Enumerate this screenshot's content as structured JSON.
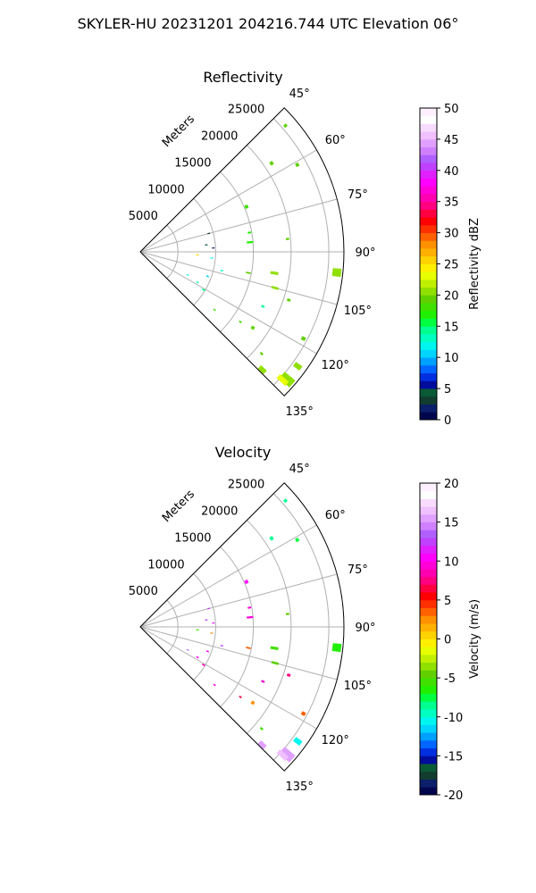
{
  "figure": {
    "title": "SKYLER-HU  20231201  204216.744 UTC Elevation 06°"
  },
  "chart_data": [
    {
      "type": "heatmap",
      "projection": "polar-sector",
      "title": "Reflectivity",
      "range_label": "Meters",
      "range_ticks": [
        5000,
        10000,
        15000,
        20000,
        25000
      ],
      "range_max": 27000,
      "azimuth_ticks": [
        "45°",
        "60°",
        "75°",
        "90°",
        "105°",
        "120°",
        "135°"
      ],
      "azimuth_range": [
        45,
        135
      ],
      "grid": true,
      "colorbar": {
        "label": "Reflectivity dBZ",
        "ticks": [
          0,
          5,
          10,
          15,
          20,
          25,
          30,
          35,
          40,
          45,
          50
        ],
        "min": 0,
        "max": 50,
        "colors": [
          "#00064e",
          "#0b1f6a",
          "#123c2e",
          "#0a5a36",
          "#000c9c",
          "#002fe0",
          "#0066ff",
          "#00a0ff",
          "#00d4ff",
          "#00f6ee",
          "#00ffc0",
          "#00ff90",
          "#00ff40",
          "#20f000",
          "#40e000",
          "#60d000",
          "#90e000",
          "#c0f000",
          "#e8ff00",
          "#fff000",
          "#ffd200",
          "#ffb000",
          "#ff9000",
          "#ff6000",
          "#ff3000",
          "#ff0000",
          "#ff0040",
          "#ff0080",
          "#ff00b0",
          "#ff00d8",
          "#ff00ff",
          "#e020ff",
          "#c040ff",
          "#b060ff",
          "#d080ff",
          "#e0a0ff",
          "#f0c0ff",
          "#f8dcff",
          "#ffffff",
          "#fff0ff"
        ]
      },
      "echoes": [
        {
          "az": 49,
          "r": 25500,
          "span_az": 0.8,
          "span_r": 400,
          "value": 19
        },
        {
          "az": 56,
          "r": 21000,
          "span_az": 1.2,
          "span_r": 400,
          "value": 19
        },
        {
          "az": 61,
          "r": 23800,
          "span_az": 1,
          "span_r": 400,
          "value": 19
        },
        {
          "az": 67,
          "r": 15300,
          "span_az": 1.5,
          "span_r": 400,
          "value": 18
        },
        {
          "az": 75,
          "r": 9400,
          "span_az": 0.6,
          "span_r": 300,
          "value": 3
        },
        {
          "az": 80,
          "r": 14700,
          "span_az": 0.7,
          "span_r": 400,
          "value": 17
        },
        {
          "az": 84,
          "r": 8800,
          "span_az": 0.6,
          "span_r": 300,
          "value": 4
        },
        {
          "az": 85,
          "r": 14600,
          "span_az": 0.8,
          "span_r": 800,
          "value": 17
        },
        {
          "az": 85,
          "r": 19600,
          "span_az": 0.6,
          "span_r": 400,
          "value": 19
        },
        {
          "az": 87,
          "r": 9700,
          "span_az": 0.5,
          "span_r": 300,
          "value": 2
        },
        {
          "az": 93,
          "r": 7600,
          "span_az": 0.7,
          "span_r": 300,
          "value": 25
        },
        {
          "az": 95,
          "r": 9500,
          "span_az": 0.6,
          "span_r": 300,
          "value": 12
        },
        {
          "az": 96,
          "r": 26200,
          "span_az": 2.2,
          "span_r": 1100,
          "value": 20
        },
        {
          "az": 99,
          "r": 18000,
          "span_az": 1,
          "span_r": 1000,
          "value": 20
        },
        {
          "az": 101,
          "r": 14600,
          "span_az": 0.6,
          "span_r": 600,
          "value": 19
        },
        {
          "az": 103,
          "r": 11100,
          "span_az": 0.6,
          "span_r": 300,
          "value": 13
        },
        {
          "az": 105,
          "r": 18500,
          "span_az": 0.8,
          "span_r": 900,
          "value": 21
        },
        {
          "az": 108,
          "r": 20700,
          "span_az": 0.8,
          "span_r": 400,
          "value": 19
        },
        {
          "az": 110,
          "r": 9500,
          "span_az": 0.8,
          "span_r": 300,
          "value": 11
        },
        {
          "az": 114,
          "r": 17800,
          "span_az": 0.7,
          "span_r": 400,
          "value": 14
        },
        {
          "az": 116,
          "r": 7000,
          "span_az": 0.6,
          "span_r": 300,
          "value": 12
        },
        {
          "az": 118,
          "r": 8600,
          "span_az": 0.8,
          "span_r": 300,
          "value": 13
        },
        {
          "az": 118,
          "r": 24500,
          "span_az": 1,
          "span_r": 500,
          "value": 19
        },
        {
          "az": 121,
          "r": 9800,
          "span_az": 0.8,
          "span_r": 400,
          "value": 14
        },
        {
          "az": 124,
          "r": 18000,
          "span_az": 1.2,
          "span_r": 400,
          "value": 19
        },
        {
          "az": 125,
          "r": 16200,
          "span_az": 0.6,
          "span_r": 300,
          "value": 18
        },
        {
          "az": 126,
          "r": 25800,
          "span_az": 1.4,
          "span_r": 1000,
          "value": 20
        },
        {
          "az": 128,
          "r": 12500,
          "span_az": 0.6,
          "span_r": 300,
          "value": 18
        },
        {
          "az": 130,
          "r": 21000,
          "span_az": 0.6,
          "span_r": 400,
          "value": 19
        },
        {
          "az": 131,
          "r": 25800,
          "span_az": 2.5,
          "span_r": 1800,
          "value": 21
        },
        {
          "az": 132,
          "r": 25400,
          "span_az": 1.5,
          "span_r": 1500,
          "value": 23
        },
        {
          "az": 134,
          "r": 22500,
          "span_az": 1.5,
          "span_r": 1000,
          "value": 21
        }
      ]
    },
    {
      "type": "heatmap",
      "projection": "polar-sector",
      "title": "Velocity",
      "range_label": "Meters",
      "range_ticks": [
        5000,
        10000,
        15000,
        20000,
        25000
      ],
      "range_max": 27000,
      "azimuth_ticks": [
        "45°",
        "60°",
        "75°",
        "90°",
        "105°",
        "120°",
        "135°"
      ],
      "azimuth_range": [
        45,
        135
      ],
      "grid": true,
      "colorbar": {
        "label": "Velocity (m/s)",
        "ticks": [
          -20,
          -15,
          -10,
          -5,
          0,
          5,
          10,
          15,
          20
        ],
        "min": -20,
        "max": 20,
        "colors": [
          "#00064e",
          "#0b1f6a",
          "#123c2e",
          "#0a5a36",
          "#000c9c",
          "#002fe0",
          "#0066ff",
          "#00a0ff",
          "#00d4ff",
          "#00f6ee",
          "#00ffc0",
          "#00ff90",
          "#00ff40",
          "#20f000",
          "#40e000",
          "#60d000",
          "#90e000",
          "#c0f000",
          "#e8ff00",
          "#fff000",
          "#ffd200",
          "#ffb000",
          "#ff9000",
          "#ff6000",
          "#ff3000",
          "#ff0000",
          "#ff0040",
          "#ff0080",
          "#ff00b0",
          "#ff00d8",
          "#ff00ff",
          "#e020ff",
          "#c040ff",
          "#b060ff",
          "#d080ff",
          "#e0a0ff",
          "#f0c0ff",
          "#f8dcff",
          "#ffffff",
          "#fff0ff"
        ]
      },
      "echoes": [
        {
          "az": 49,
          "r": 25500,
          "span_az": 0.8,
          "span_r": 400,
          "value": -9
        },
        {
          "az": 56,
          "r": 21000,
          "span_az": 1.2,
          "span_r": 400,
          "value": -9
        },
        {
          "az": 61,
          "r": 23800,
          "span_az": 1,
          "span_r": 400,
          "value": -8
        },
        {
          "az": 67,
          "r": 15300,
          "span_az": 1.5,
          "span_r": 400,
          "value": 10
        },
        {
          "az": 75,
          "r": 9400,
          "span_az": 0.6,
          "span_r": 300,
          "value": 12
        },
        {
          "az": 80,
          "r": 14700,
          "span_az": 0.7,
          "span_r": 400,
          "value": 9
        },
        {
          "az": 84,
          "r": 8800,
          "span_az": 0.6,
          "span_r": 300,
          "value": 12
        },
        {
          "az": 85,
          "r": 14600,
          "span_az": 0.8,
          "span_r": 800,
          "value": 9
        },
        {
          "az": 85,
          "r": 19600,
          "span_az": 0.6,
          "span_r": 400,
          "value": -5
        },
        {
          "az": 87,
          "r": 9700,
          "span_az": 0.5,
          "span_r": 300,
          "value": 11
        },
        {
          "az": 93,
          "r": 7600,
          "span_az": 0.7,
          "span_r": 300,
          "value": -6
        },
        {
          "az": 95,
          "r": 9500,
          "span_az": 0.6,
          "span_r": 300,
          "value": 2
        },
        {
          "az": 96,
          "r": 26200,
          "span_az": 2.2,
          "span_r": 1100,
          "value": -7
        },
        {
          "az": 99,
          "r": 18000,
          "span_az": 1,
          "span_r": 1000,
          "value": -6
        },
        {
          "az": 101,
          "r": 14600,
          "span_az": 0.6,
          "span_r": 600,
          "value": 3
        },
        {
          "az": 103,
          "r": 11100,
          "span_az": 0.6,
          "span_r": 300,
          "value": 12
        },
        {
          "az": 105,
          "r": 18500,
          "span_az": 0.8,
          "span_r": 900,
          "value": -5
        },
        {
          "az": 108,
          "r": 20700,
          "span_az": 0.8,
          "span_r": 400,
          "value": 7
        },
        {
          "az": 110,
          "r": 9500,
          "span_az": 0.8,
          "span_r": 300,
          "value": 10
        },
        {
          "az": 114,
          "r": 17800,
          "span_az": 0.7,
          "span_r": 400,
          "value": 9
        },
        {
          "az": 116,
          "r": 7000,
          "span_az": 0.6,
          "span_r": 300,
          "value": 13
        },
        {
          "az": 118,
          "r": 8600,
          "span_az": 0.8,
          "span_r": 300,
          "value": 10
        },
        {
          "az": 118,
          "r": 24500,
          "span_az": 1,
          "span_r": 500,
          "value": 3
        },
        {
          "az": 121,
          "r": 9800,
          "span_az": 0.8,
          "span_r": 400,
          "value": 8
        },
        {
          "az": 124,
          "r": 18000,
          "span_az": 1.2,
          "span_r": 400,
          "value": 2
        },
        {
          "az": 125,
          "r": 16200,
          "span_az": 0.6,
          "span_r": 300,
          "value": 6
        },
        {
          "az": 126,
          "r": 25800,
          "span_az": 1.4,
          "span_r": 1000,
          "value": -11
        },
        {
          "az": 128,
          "r": 12500,
          "span_az": 0.6,
          "span_r": 300,
          "value": 10
        },
        {
          "az": 130,
          "r": 21000,
          "span_az": 0.6,
          "span_r": 400,
          "value": -6
        },
        {
          "az": 131,
          "r": 25800,
          "span_az": 2.5,
          "span_r": 1800,
          "value": 15
        },
        {
          "az": 132,
          "r": 25400,
          "span_az": 1.5,
          "span_r": 1500,
          "value": 16
        },
        {
          "az": 134,
          "r": 22500,
          "span_az": 1.5,
          "span_r": 1000,
          "value": 15
        }
      ]
    }
  ]
}
